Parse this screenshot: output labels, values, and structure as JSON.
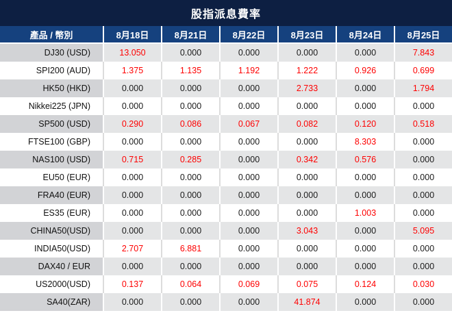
{
  "title": "股指派息費率",
  "colors": {
    "title_bg": "#0d1f42",
    "header_bg": "#15417e",
    "header_text": "#ffffff",
    "alt_row_label_bg": "#d2d3d6",
    "alt_row_value_bg": "#e4e5e6",
    "nonzero_value_text": "#fe0000",
    "zero_value_text": "#1a1a1a"
  },
  "table": {
    "columns": [
      "產品 / 幣別",
      "8月18日",
      "8月21日",
      "8月22日",
      "8月23日",
      "8月24日",
      "8月25日"
    ],
    "rows": [
      {
        "product": "DJ30 (USD)",
        "values": [
          "13.050",
          "0.000",
          "0.000",
          "0.000",
          "0.000",
          "7.843"
        ]
      },
      {
        "product": "SPI200 (AUD)",
        "values": [
          "1.375",
          "1.135",
          "1.192",
          "1.222",
          "0.926",
          "0.699"
        ]
      },
      {
        "product": "HK50 (HKD)",
        "values": [
          "0.000",
          "0.000",
          "0.000",
          "2.733",
          "0.000",
          "1.794"
        ]
      },
      {
        "product": "Nikkei225 (JPN)",
        "values": [
          "0.000",
          "0.000",
          "0.000",
          "0.000",
          "0.000",
          "0.000"
        ]
      },
      {
        "product": "SP500 (USD)",
        "values": [
          "0.290",
          "0.086",
          "0.067",
          "0.082",
          "0.120",
          "0.518"
        ]
      },
      {
        "product": "FTSE100 (GBP)",
        "values": [
          "0.000",
          "0.000",
          "0.000",
          "0.000",
          "8.303",
          "0.000"
        ]
      },
      {
        "product": "NAS100 (USD)",
        "values": [
          "0.715",
          "0.285",
          "0.000",
          "0.342",
          "0.576",
          "0.000"
        ]
      },
      {
        "product": "EU50 (EUR)",
        "values": [
          "0.000",
          "0.000",
          "0.000",
          "0.000",
          "0.000",
          "0.000"
        ]
      },
      {
        "product": "FRA40 (EUR)",
        "values": [
          "0.000",
          "0.000",
          "0.000",
          "0.000",
          "0.000",
          "0.000"
        ]
      },
      {
        "product": "ES35 (EUR)",
        "values": [
          "0.000",
          "0.000",
          "0.000",
          "0.000",
          "1.003",
          "0.000"
        ]
      },
      {
        "product": "CHINA50(USD)",
        "values": [
          "0.000",
          "0.000",
          "0.000",
          "3.043",
          "0.000",
          "5.095"
        ]
      },
      {
        "product": "INDIA50(USD)",
        "values": [
          "2.707",
          "6.881",
          "0.000",
          "0.000",
          "0.000",
          "0.000"
        ]
      },
      {
        "product": "DAX40 / EUR",
        "values": [
          "0.000",
          "0.000",
          "0.000",
          "0.000",
          "0.000",
          "0.000"
        ]
      },
      {
        "product": "US2000(USD)",
        "values": [
          "0.137",
          "0.064",
          "0.069",
          "0.075",
          "0.124",
          "0.030"
        ]
      },
      {
        "product": "SA40(ZAR)",
        "values": [
          "0.000",
          "0.000",
          "0.000",
          "41.874",
          "0.000",
          "0.000"
        ]
      }
    ]
  }
}
